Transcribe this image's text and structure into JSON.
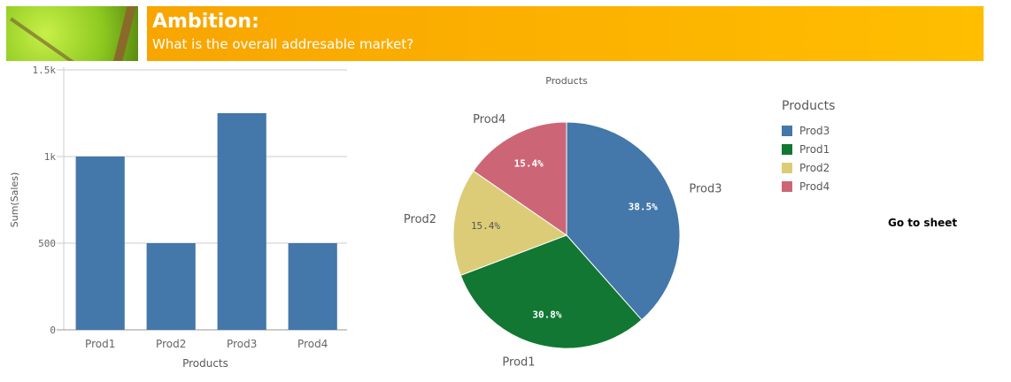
{
  "header": {
    "title": "Ambition:",
    "subtitle": "What is the overall addresable market?",
    "image": "leaf-image"
  },
  "chart_data": [
    {
      "type": "bar",
      "categories": [
        "Prod1",
        "Prod2",
        "Prod3",
        "Prod4"
      ],
      "values": [
        1000,
        500,
        1250,
        500
      ],
      "xlabel": "Products",
      "ylabel": "Sum(Sales)",
      "ylim": [
        0,
        1500
      ],
      "yticks": [
        {
          "v": 0,
          "label": "0"
        },
        {
          "v": 500,
          "label": "500"
        },
        {
          "v": 1000,
          "label": "1k"
        },
        {
          "v": 1500,
          "label": "1.5k"
        }
      ],
      "grid": true,
      "color": "#4477aa"
    },
    {
      "type": "pie",
      "title": "Products",
      "categories": [
        "Prod3",
        "Prod1",
        "Prod2",
        "Prod4"
      ],
      "values": [
        38.5,
        30.8,
        15.4,
        15.4
      ],
      "labels": [
        "38.5%",
        "30.8%",
        "15.4%",
        "15.4%"
      ],
      "colors": [
        "#4477aa",
        "#117733",
        "#ddcc77",
        "#cc6677"
      ],
      "legend": "right"
    }
  ],
  "legend": {
    "title": "Products",
    "items": [
      "Prod3",
      "Prod1",
      "Prod2",
      "Prod4"
    ]
  },
  "goto": "Go to sheet"
}
